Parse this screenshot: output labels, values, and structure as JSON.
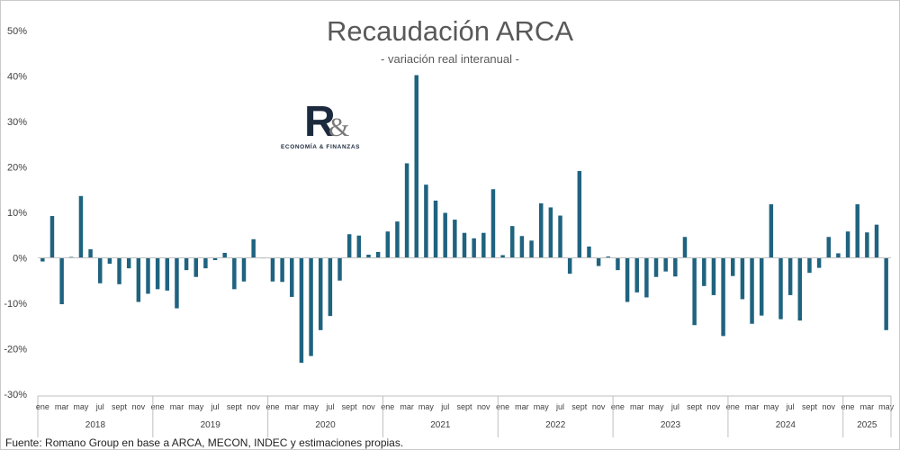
{
  "chart_data": {
    "type": "bar",
    "title": "Recaudación ARCA",
    "subtitle": "- variación real interanual -",
    "source": "Fuente: Romano Group en base a ARCA, MECON, INDEC y estimaciones propias.",
    "yticks": [
      "50%",
      "40%",
      "30%",
      "20%",
      "10%",
      "0%",
      "-10%",
      "-20%",
      "-30%"
    ],
    "ylim": [
      -30,
      50
    ],
    "grid": false,
    "bar_color": "#1f637f",
    "month_labels": [
      "ene",
      "mar",
      "may",
      "jul",
      "sept",
      "nov"
    ],
    "years": [
      "2018",
      "2019",
      "2020",
      "2021",
      "2022",
      "2023",
      "2024",
      "2025"
    ],
    "x_start": "2018-01",
    "x_end": "2025-05",
    "values": [
      -0.8,
      9.2,
      -10.2,
      0.2,
      13.6,
      1.9,
      -5.6,
      -1.3,
      -5.8,
      -2.3,
      -9.7,
      -7.9,
      -6.9,
      -7.2,
      -11.1,
      -2.7,
      -4.2,
      -2.3,
      -0.5,
      1.1,
      -6.9,
      -5.2,
      4.1,
      0.0,
      -5.2,
      -5.3,
      -8.6,
      -23.1,
      -21.6,
      -15.9,
      -12.8,
      -5.0,
      5.2,
      4.9,
      0.7,
      1.3,
      5.8,
      8.0,
      20.8,
      40.2,
      16.1,
      12.6,
      9.9,
      8.4,
      5.5,
      4.3,
      5.5,
      15.1,
      0.6,
      7.0,
      4.8,
      3.8,
      12.0,
      11.1,
      9.3,
      -3.5,
      19.1,
      2.5,
      -1.8,
      0.3,
      -2.7,
      -9.7,
      -7.6,
      -8.7,
      -4.2,
      -3.0,
      -4.1,
      4.6,
      -14.8,
      -6.2,
      -8.2,
      -17.2,
      -4.0,
      -9.1,
      -14.5,
      -12.7,
      11.8,
      -13.5,
      -8.2,
      -13.8,
      -3.3,
      -2.2,
      4.6,
      1.0,
      5.8,
      11.8,
      5.6,
      7.3,
      -15.9
    ]
  },
  "logo": {
    "letter": "R",
    "amp": "&",
    "tagline": "ECONOMÍA & FINANZAS"
  }
}
